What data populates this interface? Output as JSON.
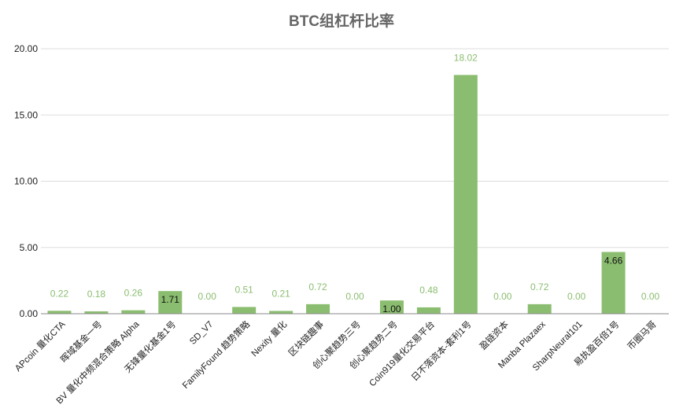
{
  "chart_data": {
    "type": "bar",
    "title": "BTC组杠杆比率",
    "xlabel": "",
    "ylabel": "",
    "ylim": [
      0,
      20
    ],
    "yticks": [
      "0.00",
      "5.00",
      "10.00",
      "15.00",
      "20.00"
    ],
    "grid": true,
    "legend": "none",
    "categories": [
      "APcoin 量化CTA",
      "晖域基金一号",
      "BV 量化中频混合策略 Alpha",
      "无锋量化基金1号",
      "SD_V7",
      "FamilyFound 趋势策略",
      "Nexity 量化",
      "区块链趣事",
      "创心聚趋势三号",
      "创心聚趋势二号",
      "Coin919量化交易平台",
      "日不落资本-套利1号",
      "盈链资本",
      "Manba Plazaex",
      "SharpNeural101",
      "易执盈百倍1号",
      "币圈马哥"
    ],
    "values": [
      0.22,
      0.18,
      0.26,
      1.71,
      0.0,
      0.51,
      0.21,
      0.72,
      0.0,
      1.0,
      0.48,
      18.02,
      0.0,
      0.72,
      0.0,
      4.66,
      0.0
    ],
    "data_labels": [
      "0.22",
      "0.18",
      "0.26",
      "1.71",
      "0.00",
      "0.51",
      "0.21",
      "0.72",
      "0.00",
      "1.00",
      "0.48",
      "18.02",
      "0.00",
      "0.72",
      "0.00",
      "4.66",
      "0.00"
    ],
    "inside_label_indices": [
      3,
      9,
      15
    ],
    "colors": {
      "bar": "#8bbd70",
      "label_outside": "#8bbd70",
      "label_inside": "#111111",
      "title": "#666666"
    }
  }
}
